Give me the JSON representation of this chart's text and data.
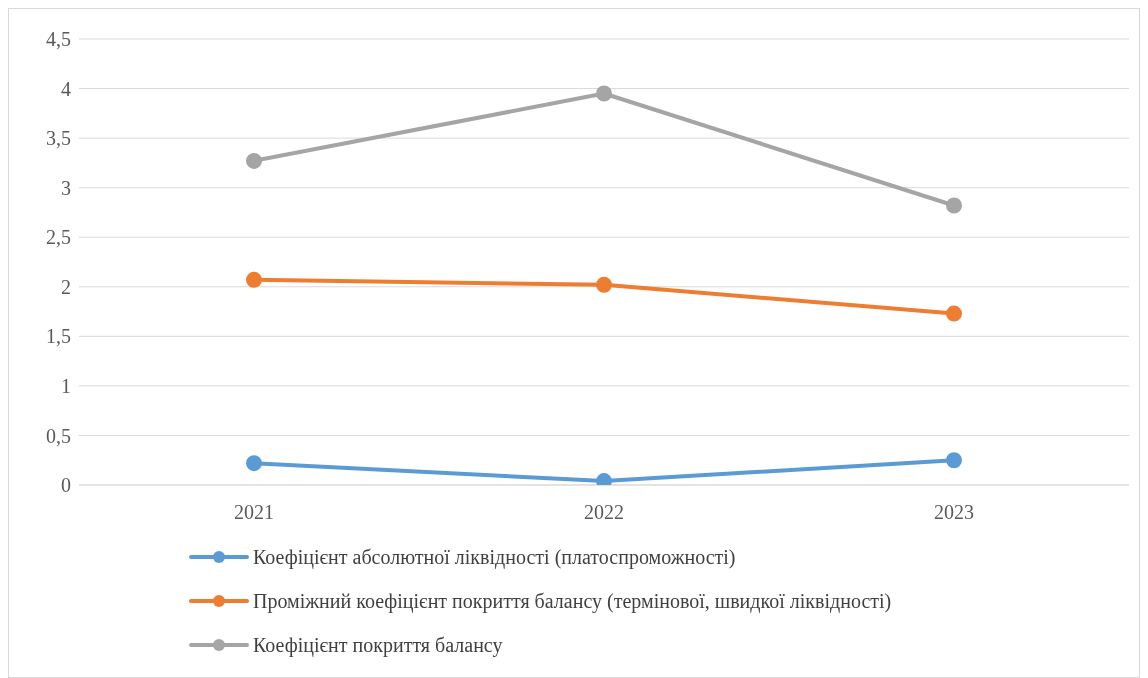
{
  "chart_data": {
    "type": "line",
    "categories": [
      "2021",
      "2022",
      "2023"
    ],
    "series": [
      {
        "name": "Коефіцієнт абсолютної ліквідності (платоспроможності)",
        "color": "#5b9bd5",
        "values": [
          0.22,
          0.04,
          0.25
        ]
      },
      {
        "name": "Проміжний коефіцієнт покриття балансу (термінової, швидкої ліквідності)",
        "color": "#ed7d31",
        "values": [
          2.07,
          2.02,
          1.73
        ]
      },
      {
        "name": "Коефіцієнт покриття балансу",
        "color": "#a5a5a5",
        "values": [
          3.27,
          3.95,
          2.82
        ]
      }
    ],
    "ylim": [
      0,
      4.5
    ],
    "yticks": [
      0,
      {
        "value": 0.5,
        "label": "0,5"
      },
      1,
      {
        "value": 1.5,
        "label": "1,5"
      },
      2,
      {
        "value": 2.5,
        "label": "2,5"
      },
      3,
      {
        "value": 3.5,
        "label": "3,5"
      },
      4,
      {
        "value": 4.5,
        "label": "4,5"
      }
    ],
    "grid": "y",
    "legend": "bottom",
    "marker": "circle",
    "line_style": "solid"
  }
}
